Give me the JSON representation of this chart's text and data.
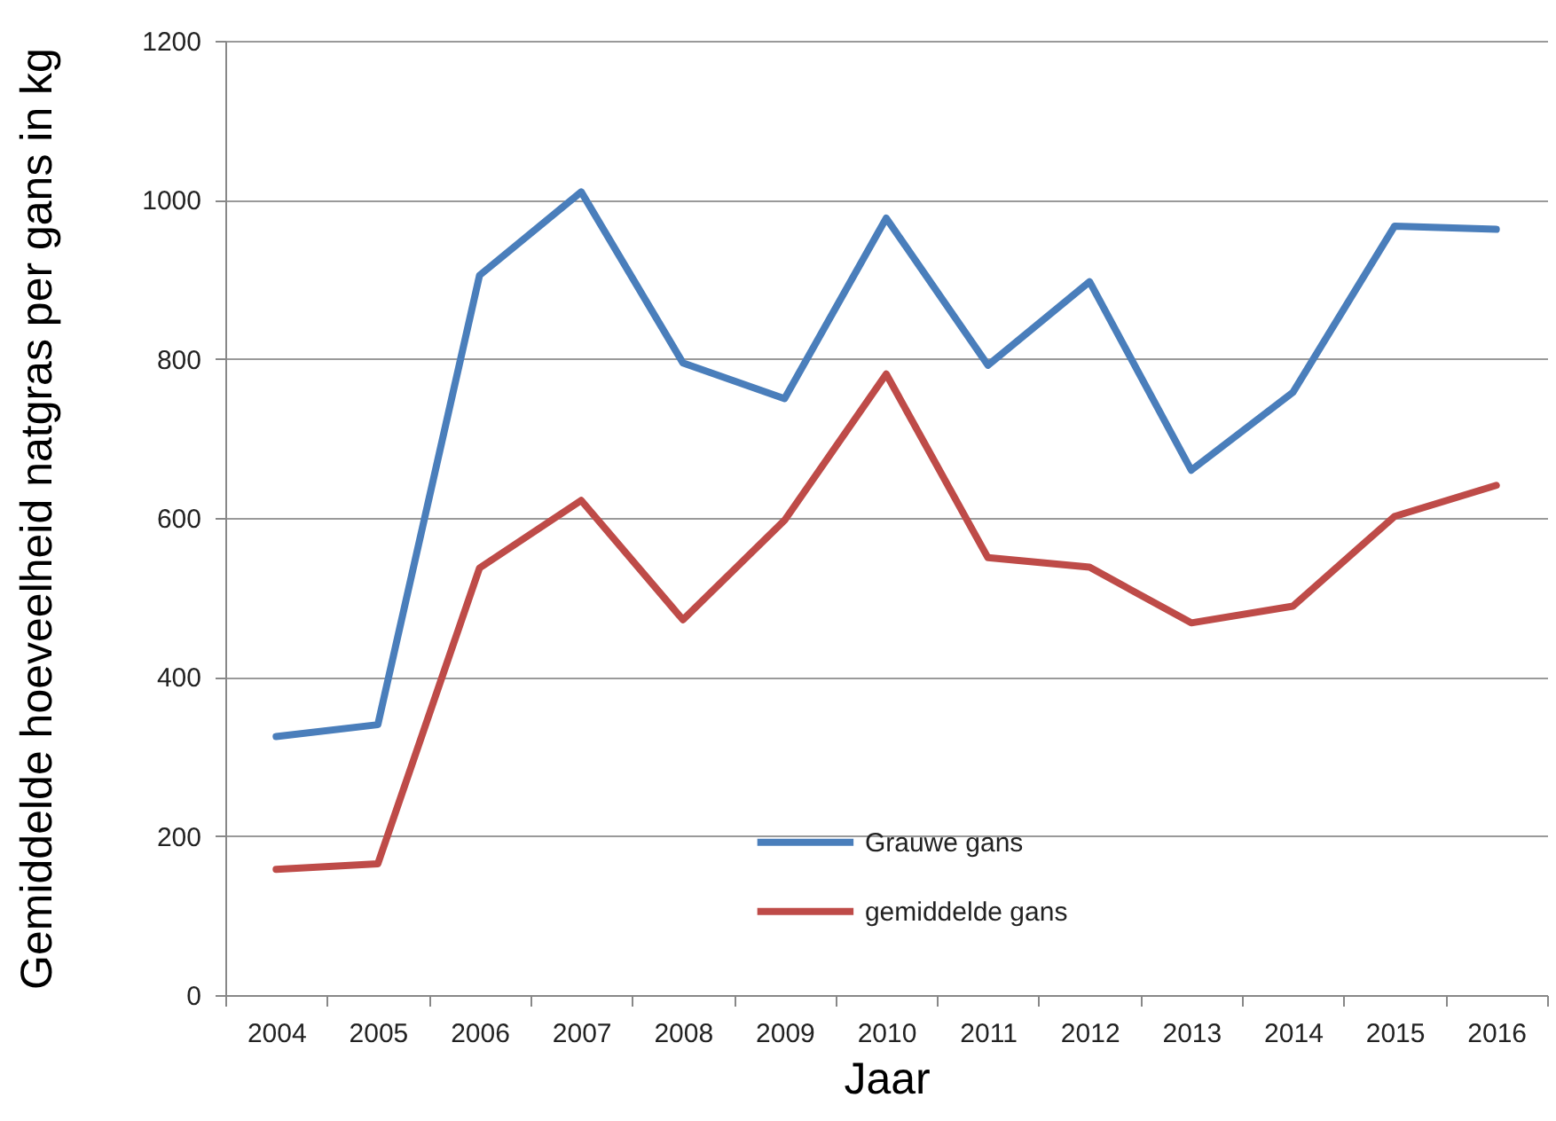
{
  "chart_data": {
    "type": "line",
    "xlabel": "Jaar",
    "ylabel": "Gemiddelde hoeveelheid natgras per gans in kg",
    "categories": [
      "2004",
      "2005",
      "2006",
      "2007",
      "2008",
      "2009",
      "2010",
      "2011",
      "2012",
      "2013",
      "2014",
      "2015",
      "2016"
    ],
    "series": [
      {
        "name": "Grauwe gans",
        "color": "#4a7ebb",
        "values": [
          325,
          340,
          905,
          1010,
          795,
          750,
          977,
          792,
          897,
          660,
          758,
          967,
          963
        ]
      },
      {
        "name": "gemiddelde gans",
        "color": "#be4b48",
        "values": [
          158,
          165,
          537,
          622,
          472,
          597,
          781,
          550,
          538,
          468,
          489,
          602,
          641
        ]
      }
    ],
    "ylim": [
      0,
      1200
    ],
    "yticks": [
      0,
      200,
      400,
      600,
      800,
      1000,
      1200
    ],
    "grid": "y",
    "legend": "bottom"
  }
}
